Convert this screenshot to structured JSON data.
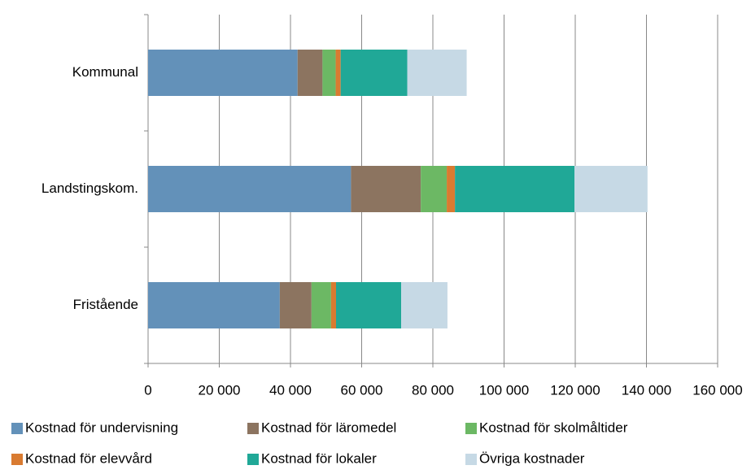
{
  "chart_data": {
    "type": "stacked-bar-horizontal",
    "categories": [
      "Kommunal",
      "Landstingskom.",
      "Fristående"
    ],
    "series": [
      {
        "name": "Kostnad för undervisning",
        "color": "#6391b9",
        "values": [
          42000,
          57000,
          37000
        ]
      },
      {
        "name": "Kostnad för läromedel",
        "color": "#8c7460",
        "values": [
          7000,
          19600,
          8900
        ]
      },
      {
        "name": "Kostnad för skolmåltider",
        "color": "#6cb864",
        "values": [
          3700,
          7300,
          5500
        ]
      },
      {
        "name": "Kostnad för elevvård",
        "color": "#d97b31",
        "values": [
          1400,
          2300,
          1400
        ]
      },
      {
        "name": "Kostnad för lokaler",
        "color": "#20a897",
        "values": [
          18700,
          33600,
          18300
        ]
      },
      {
        "name": "Övriga kostnader",
        "color": "#c6d9e5",
        "values": [
          16700,
          20500,
          13000
        ]
      }
    ],
    "xlim": [
      0,
      160000
    ],
    "xticks": [
      0,
      {
        "value": 20000,
        "label": "20 000"
      },
      {
        "value": 40000,
        "label": "40 000"
      },
      {
        "value": 60000,
        "label": "60 000"
      },
      {
        "value": 80000,
        "label": "80 000"
      },
      {
        "value": 100000,
        "label": "100 000"
      },
      {
        "value": 120000,
        "label": "120 000"
      },
      {
        "value": 140000,
        "label": "140 000"
      },
      {
        "value": 160000,
        "label": "160 000"
      }
    ],
    "grid": true
  }
}
